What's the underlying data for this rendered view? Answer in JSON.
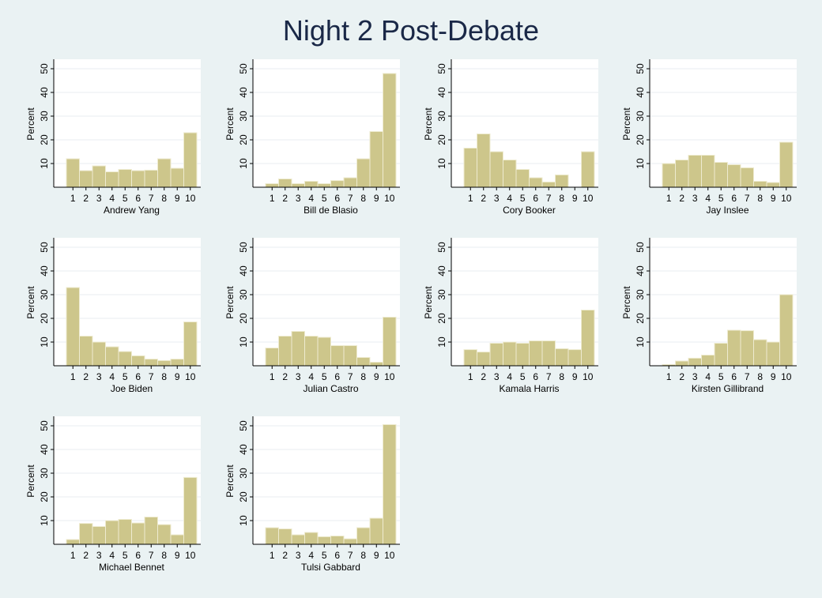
{
  "title": "Night 2 Post-Debate",
  "colors": {
    "background": "#eaf2f3",
    "plot_background": "#ffffff",
    "bar_fill": "#cdc68b",
    "bar_stroke": "#eeebd0",
    "gridline": "#e8eef0",
    "title_color": "#1a2847"
  },
  "chart_data": [
    {
      "type": "bar",
      "xlabel": "Andrew Yang",
      "ylabel": "Percent",
      "categories": [
        "1",
        "2",
        "3",
        "4",
        "5",
        "6",
        "7",
        "8",
        "9",
        "10"
      ],
      "values": [
        12,
        7,
        9,
        6.5,
        7.5,
        7,
        7.2,
        12,
        8,
        23
      ],
      "yticks": [
        10,
        20,
        30,
        40,
        50
      ],
      "ylim": [
        0,
        52
      ],
      "grid": true
    },
    {
      "type": "bar",
      "xlabel": "Bill de Blasio",
      "ylabel": "Percent",
      "categories": [
        "1",
        "2",
        "3",
        "4",
        "5",
        "6",
        "7",
        "8",
        "9",
        "10"
      ],
      "values": [
        1.5,
        3.5,
        1.5,
        2.5,
        1.5,
        2.8,
        4,
        12,
        23.5,
        48
      ],
      "yticks": [
        10,
        20,
        30,
        40,
        50
      ],
      "ylim": [
        0,
        52
      ],
      "grid": true
    },
    {
      "type": "bar",
      "xlabel": "Cory Booker",
      "ylabel": "Percent",
      "categories": [
        "1",
        "2",
        "3",
        "4",
        "5",
        "6",
        "7",
        "8",
        "9",
        "10"
      ],
      "values": [
        16.5,
        22.5,
        15,
        11.5,
        7.5,
        4,
        2.2,
        5.2,
        0,
        15
      ],
      "yticks": [
        10,
        20,
        30,
        40,
        50
      ],
      "ylim": [
        0,
        52
      ],
      "grid": true
    },
    {
      "type": "bar",
      "xlabel": "Jay Inslee",
      "ylabel": "Percent",
      "categories": [
        "1",
        "2",
        "3",
        "4",
        "5",
        "6",
        "7",
        "8",
        "9",
        "10"
      ],
      "values": [
        10,
        11.5,
        13.5,
        13.5,
        10.5,
        9.5,
        8.2,
        2.5,
        2,
        19
      ],
      "yticks": [
        10,
        20,
        30,
        40,
        50
      ],
      "ylim": [
        0,
        52
      ],
      "grid": true
    },
    {
      "type": "bar",
      "xlabel": "Joe Biden",
      "ylabel": "Percent",
      "categories": [
        "1",
        "2",
        "3",
        "4",
        "5",
        "6",
        "7",
        "8",
        "9",
        "10"
      ],
      "values": [
        33,
        12.5,
        10,
        8,
        6,
        4.2,
        2.8,
        2.2,
        2.8,
        18.5
      ],
      "yticks": [
        10,
        20,
        30,
        40,
        50
      ],
      "ylim": [
        0,
        52
      ],
      "grid": true
    },
    {
      "type": "bar",
      "xlabel": "Julian Castro",
      "ylabel": "Percent",
      "categories": [
        "1",
        "2",
        "3",
        "4",
        "5",
        "6",
        "7",
        "8",
        "9",
        "10"
      ],
      "values": [
        7.5,
        12.5,
        14.5,
        12.5,
        12,
        8.5,
        8.5,
        3.5,
        1.5,
        20.5
      ],
      "yticks": [
        10,
        20,
        30,
        40,
        50
      ],
      "ylim": [
        0,
        52
      ],
      "grid": true
    },
    {
      "type": "bar",
      "xlabel": "Kamala Harris",
      "ylabel": "Percent",
      "categories": [
        "1",
        "2",
        "3",
        "4",
        "5",
        "6",
        "7",
        "8",
        "9",
        "10"
      ],
      "values": [
        6.8,
        5.8,
        9.5,
        10,
        9.5,
        10.5,
        10.5,
        7.2,
        6.8,
        23.5
      ],
      "yticks": [
        10,
        20,
        30,
        40,
        50
      ],
      "ylim": [
        0,
        52
      ],
      "grid": true
    },
    {
      "type": "bar",
      "xlabel": "Kirsten Gillibrand",
      "ylabel": "Percent",
      "categories": [
        "1",
        "2",
        "3",
        "4",
        "5",
        "6",
        "7",
        "8",
        "9",
        "10"
      ],
      "values": [
        0.5,
        2,
        3.2,
        4.5,
        9.5,
        15,
        14.8,
        11,
        10,
        30
      ],
      "yticks": [
        10,
        20,
        30,
        40,
        50
      ],
      "ylim": [
        0,
        52
      ],
      "grid": true
    },
    {
      "type": "bar",
      "xlabel": "Michael Bennet",
      "ylabel": "Percent",
      "categories": [
        "1",
        "2",
        "3",
        "4",
        "5",
        "6",
        "7",
        "8",
        "9",
        "10"
      ],
      "values": [
        2,
        8.8,
        7.5,
        10,
        10.5,
        9,
        11.5,
        8.3,
        4,
        28.2
      ],
      "yticks": [
        10,
        20,
        30,
        40,
        50
      ],
      "ylim": [
        0,
        52
      ],
      "grid": true
    },
    {
      "type": "bar",
      "xlabel": "Tulsi Gabbard",
      "ylabel": "Percent",
      "categories": [
        "1",
        "2",
        "3",
        "4",
        "5",
        "6",
        "7",
        "8",
        "9",
        "10"
      ],
      "values": [
        7,
        6.5,
        4,
        5,
        3.2,
        3.5,
        2.3,
        7,
        11,
        50.5
      ],
      "yticks": [
        10,
        20,
        30,
        40,
        50
      ],
      "ylim": [
        0,
        52
      ],
      "grid": true
    }
  ]
}
